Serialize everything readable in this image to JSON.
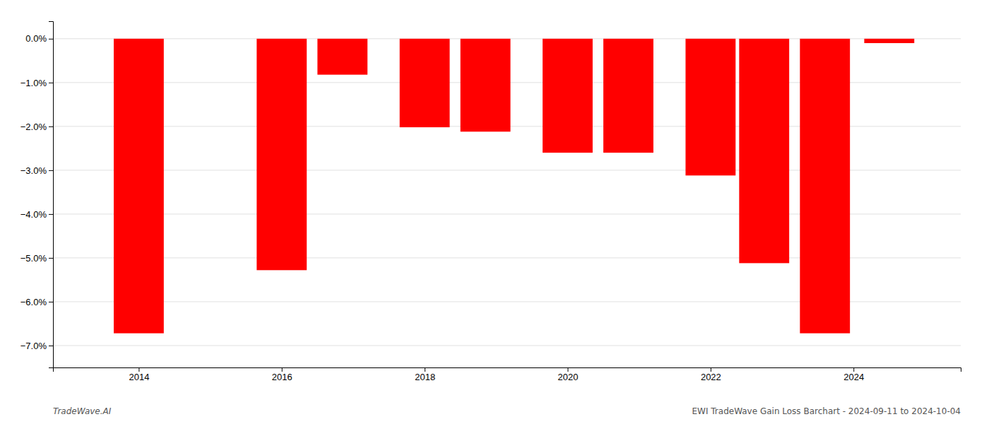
{
  "chart_data": {
    "type": "bar",
    "x": [
      2014,
      2016,
      2016.85,
      2018,
      2018.85,
      2020,
      2020.85,
      2022,
      2022.75,
      2023.6,
      2024.5
    ],
    "values": [
      -6.72,
      -5.28,
      -0.82,
      -2.02,
      -2.12,
      -2.6,
      -2.6,
      -3.12,
      -5.12,
      -6.72,
      -0.1
    ],
    "color": "#ff0000",
    "xlim": [
      2012.8,
      2025.5
    ],
    "xticks": [
      2014,
      2016,
      2018,
      2020,
      2022,
      2024
    ],
    "ylim": [
      -7.5,
      0.4
    ],
    "yticks": [
      {
        "value": 0.0,
        "label": "0.0%"
      },
      {
        "value": -1.0,
        "label": "−1.0%"
      },
      {
        "value": -2.0,
        "label": "−2.0%"
      },
      {
        "value": -3.0,
        "label": "−3.0%"
      },
      {
        "value": -4.0,
        "label": "−4.0%"
      },
      {
        "value": -5.0,
        "label": "−5.0%"
      },
      {
        "value": -6.0,
        "label": "−6.0%"
      },
      {
        "value": -7.0,
        "label": "−7.0%"
      }
    ],
    "grid": true,
    "annotations": [
      "TradeWave.AI",
      "EWI TradeWave Gain Loss Barchart - 2024-09-11 to 2024-10-04"
    ]
  }
}
